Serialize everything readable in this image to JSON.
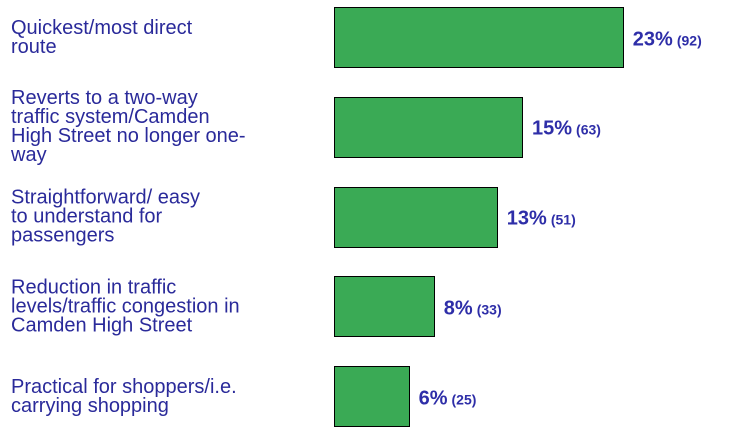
{
  "chart_data": {
    "type": "bar",
    "orientation": "horizontal",
    "categories": [
      "Quickest/most direct\nroute",
      "Reverts to a two-way\ntraffic system/Camden\nHigh Street no longer one-\nway",
      "Straightforward/ easy\nto understand for\npassengers",
      "Reduction in traffic\nlevels/traffic congestion in\nCamden High Street",
      "Practical for shoppers/i.e.\ncarrying shopping"
    ],
    "values": [
      23,
      15,
      13,
      8,
      6
    ],
    "value_labels": [
      "23%",
      "15%",
      "13%",
      "8%",
      "6%"
    ],
    "counts": [
      92,
      63,
      51,
      33,
      25
    ],
    "count_labels": [
      "(92)",
      "(63)",
      "(51)",
      "(33)",
      "(25)"
    ],
    "color": "#3aaa55"
  }
}
